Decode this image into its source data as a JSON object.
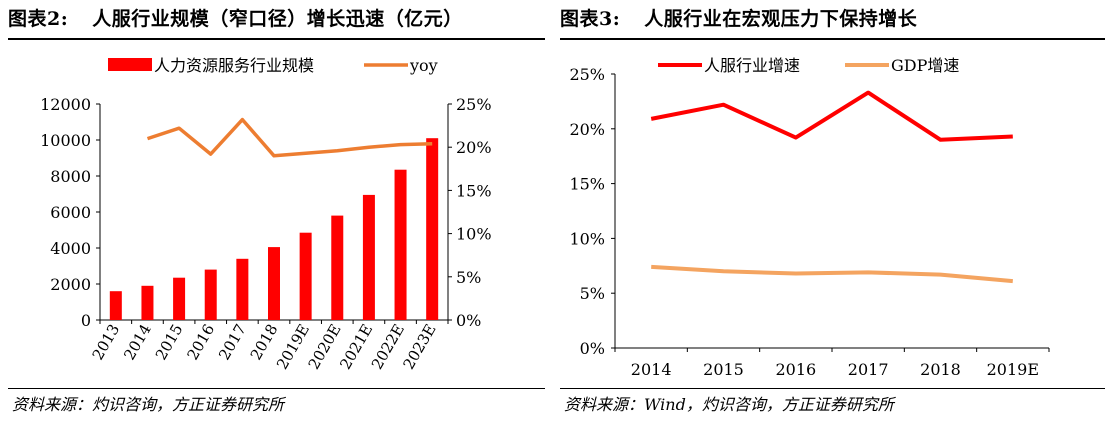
{
  "left": {
    "fig_no": "图表2:",
    "title": "人服行业规模（窄口径）增长迅速（亿元）",
    "source": "资料来源：灼识咨询，方正证券研究所"
  },
  "right": {
    "fig_no": "图表3:",
    "title": "人服行业在宏观压力下保持增长",
    "source": "资料来源：Wind，灼识咨询，方正证券研究所"
  },
  "colors": {
    "bar": "#ff0000",
    "yoy": "#ed7d31",
    "industry": "#ff0000",
    "gdp": "#f4a460",
    "axis": "#000000"
  },
  "chart_data": [
    {
      "type": "bar",
      "title": "人服行业规模（窄口径）增长迅速（亿元）",
      "categories": [
        "2013",
        "2014",
        "2015",
        "2016",
        "2017",
        "2018",
        "2019E",
        "2020E",
        "2021E",
        "2022E",
        "2023E"
      ],
      "series": [
        {
          "name": "人力资源服务行业规模",
          "type": "bar",
          "axis": "left",
          "values": [
            1600,
            1900,
            2350,
            2800,
            3400,
            4050,
            4850,
            5800,
            6950,
            8350,
            10100
          ]
        },
        {
          "name": "yoy",
          "type": "line",
          "axis": "right",
          "values": [
            null,
            0.21,
            0.222,
            0.192,
            0.232,
            0.19,
            0.193,
            0.196,
            0.2,
            0.203,
            0.204
          ]
        }
      ],
      "ylim": [
        0,
        12000
      ],
      "yticks": [
        "0",
        "2000",
        "4000",
        "6000",
        "8000",
        "10000",
        "12000"
      ],
      "y2lim": [
        0,
        0.25
      ],
      "y2ticks": [
        "0%",
        "5%",
        "10%",
        "15%",
        "20%",
        "25%"
      ],
      "legend": "top"
    },
    {
      "type": "line",
      "title": "人服行业在宏观压力下保持增长",
      "categories": [
        "2014",
        "2015",
        "2016",
        "2017",
        "2018",
        "2019E"
      ],
      "series": [
        {
          "name": "人服行业增速",
          "values": [
            0.209,
            0.222,
            0.192,
            0.233,
            0.19,
            0.193
          ]
        },
        {
          "name": "GDP增速",
          "values": [
            0.074,
            0.07,
            0.068,
            0.069,
            0.067,
            0.061
          ]
        }
      ],
      "ylim": [
        0,
        0.25
      ],
      "yticks": [
        "0%",
        "5%",
        "10%",
        "15%",
        "20%",
        "25%"
      ],
      "legend": "top"
    }
  ]
}
